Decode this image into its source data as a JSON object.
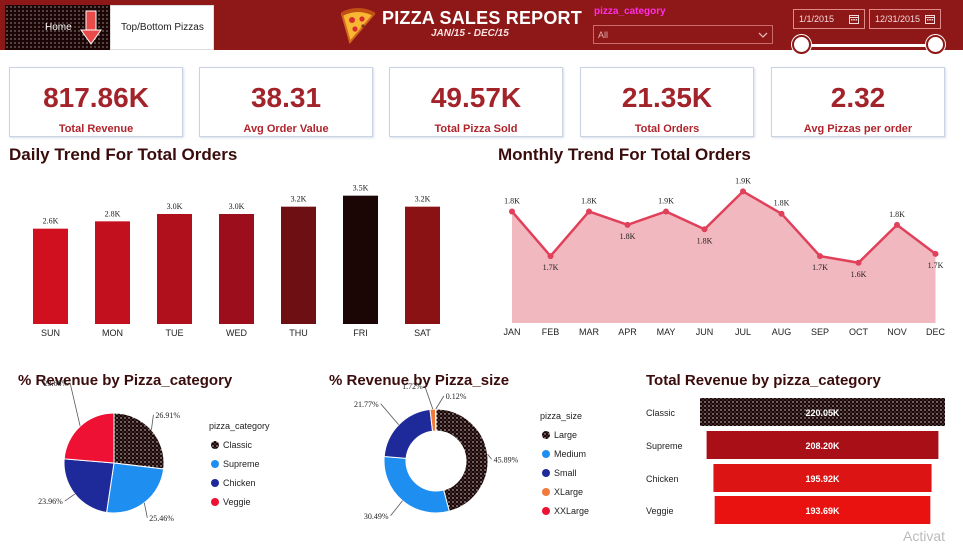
{
  "header": {
    "home_label": "Home",
    "topbottom_label": "Top/Bottom Pizzas",
    "title": "PIZZA SALES REPORT",
    "subtitle": "JAN/15 - DEC/15",
    "filter_label": "pizza_category",
    "filter_value": "All",
    "date_start": "1/1/2015",
    "date_end": "12/31/2015",
    "slider_value": [
      0,
      1
    ]
  },
  "kpis": [
    {
      "value": "817.86K",
      "label": "Total Revenue"
    },
    {
      "value": "38.31",
      "label": "Avg Order Value"
    },
    {
      "value": "49.57K",
      "label": "Total Pizza Sold"
    },
    {
      "value": "21.35K",
      "label": "Total Orders"
    },
    {
      "value": "2.32",
      "label": "Avg Pizzas per order"
    }
  ],
  "titles": {
    "daily": "Daily Trend For Total Orders",
    "monthly": "Monthly Trend For Total Orders",
    "category": "% Revenue by Pizza_category",
    "size": "% Revenue by Pizza_size",
    "total_rev": "Total Revenue by pizza_category"
  },
  "colors": {
    "header": "#8e1717",
    "accent": "#a3232b",
    "area_fill": "#f2b8bf",
    "line": "#e0405a",
    "blue": "#1f8ef1",
    "navy": "#1e2a9a",
    "red": "#ee1133",
    "orange": "#ef7a3c"
  },
  "chart_data": [
    {
      "type": "bar",
      "name_id": "daily",
      "categories": [
        "SUN",
        "MON",
        "TUE",
        "WED",
        "THU",
        "FRI",
        "SAT"
      ],
      "values": [
        2.6,
        2.8,
        3.0,
        3.0,
        3.2,
        3.5,
        3.2
      ],
      "labels": [
        "2.6K",
        "2.8K",
        "3.0K",
        "3.0K",
        "3.2K",
        "3.5K",
        "3.2K"
      ],
      "colors": [
        "#d0101e",
        "#c3101e",
        "#b00f1c",
        "#9c0e1b",
        "#6e0f14",
        "#1b0505",
        "#8a1114"
      ],
      "ylim": [
        0,
        3.6
      ]
    },
    {
      "type": "area",
      "name_id": "monthly",
      "categories": [
        "JAN",
        "FEB",
        "MAR",
        "APR",
        "MAY",
        "JUN",
        "JUL",
        "AUG",
        "SEP",
        "OCT",
        "NOV",
        "DEC"
      ],
      "values": [
        1.85,
        1.65,
        1.85,
        1.79,
        1.85,
        1.77,
        1.94,
        1.84,
        1.65,
        1.62,
        1.79,
        1.66
      ],
      "labels": [
        "1.8K",
        "1.7K",
        "1.8K",
        "1.8K",
        "1.9K",
        "1.8K",
        "1.9K",
        "1.8K",
        "1.7K",
        "1.6K",
        "1.8K",
        "1.7K"
      ],
      "ylim": [
        1.35,
        2.0
      ]
    },
    {
      "type": "pie",
      "name_id": "category",
      "legend_title": "pizza_category",
      "labels": [
        "Classic",
        "Supreme",
        "Chicken",
        "Veggie"
      ],
      "values": [
        26.91,
        25.46,
        23.96,
        23.68
      ],
      "value_labels": [
        "26.91%",
        "25.46%",
        "23.96%",
        "23.68%"
      ],
      "colors": [
        "dots",
        "#1f8ef1",
        "#1e2a9a",
        "#ee1133"
      ]
    },
    {
      "type": "pie",
      "name_id": "size",
      "legend_title": "pizza_size",
      "labels": [
        "Large",
        "Medium",
        "Small",
        "XLarge",
        "XXLarge"
      ],
      "values": [
        45.89,
        30.49,
        21.77,
        1.72,
        0.12
      ],
      "value_labels": [
        "45.89%",
        "30.49%",
        "21.77%",
        "1.72%",
        "0.12%"
      ],
      "colors": [
        "dots",
        "#1f8ef1",
        "#1e2a9a",
        "#ef7a3c",
        "#ee1133"
      ]
    },
    {
      "type": "bar",
      "name_id": "total_rev",
      "orientation": "horizontal",
      "categories": [
        "Classic",
        "Supreme",
        "Chicken",
        "Veggie"
      ],
      "values": [
        220.05,
        208.2,
        195.92,
        193.69
      ],
      "labels": [
        "220.05K",
        "208.20K",
        "195.92K",
        "193.69K"
      ],
      "colors": [
        "dots",
        "#a90f16",
        "#dc1414",
        "#ea1111"
      ]
    }
  ],
  "watermark": "Activat"
}
